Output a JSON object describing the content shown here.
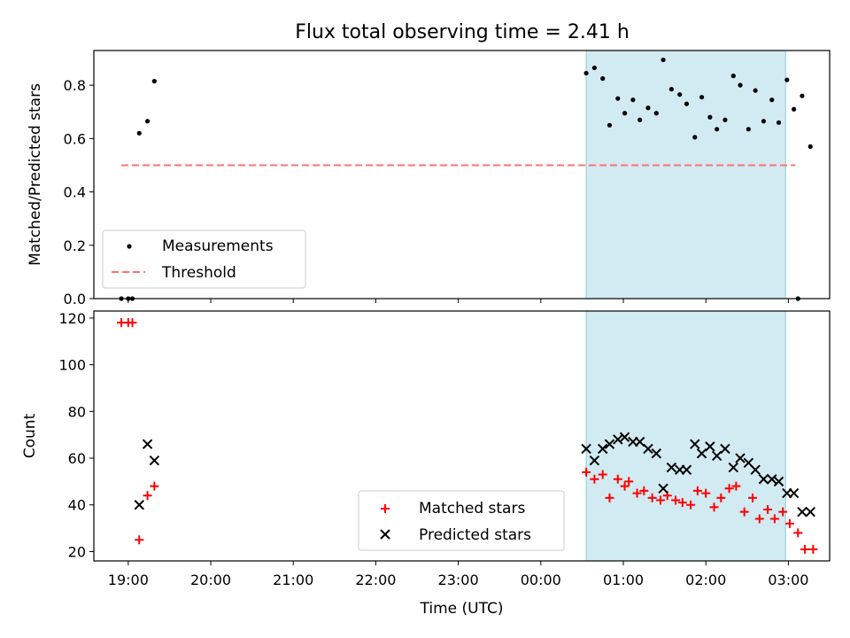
{
  "title": "Flux total observing time = 2.41 h",
  "colors": {
    "measurement": "#000000",
    "threshold": "#ff7070",
    "matched": "#ff0000",
    "predicted": "#000000",
    "span": "#add8e6"
  },
  "chart_data": [
    {
      "type": "scatter",
      "ylabel": "Matched/Predicted stars",
      "ylim": [
        0,
        0.93
      ],
      "yticks": [
        "0.0",
        "0.2",
        "0.4",
        "0.6",
        "0.8"
      ],
      "ytick_values": [
        0,
        0.2,
        0.4,
        0.6,
        0.8
      ],
      "xlim": [
        "18:35",
        "03:30"
      ],
      "observing_window": [
        "00:33",
        "02:58"
      ],
      "legend": {
        "placement": "lower-left",
        "entries": [
          "Measurements",
          "Threshold"
        ]
      },
      "threshold": {
        "name": "Threshold",
        "value": 0.5,
        "x": [
          "18:55",
          "03:05"
        ]
      },
      "series": [
        {
          "name": "Measurements",
          "points": [
            [
              "18:55",
              0.0
            ],
            [
              "19:00",
              0.0
            ],
            [
              "19:03",
              0.0
            ],
            [
              "19:08",
              0.62
            ],
            [
              "19:14",
              0.665
            ],
            [
              "19:19",
              0.815
            ],
            [
              "00:33",
              0.845
            ],
            [
              "00:39",
              0.865
            ],
            [
              "00:45",
              0.825
            ],
            [
              "00:50",
              0.65
            ],
            [
              "00:56",
              0.75
            ],
            [
              "01:01",
              0.695
            ],
            [
              "01:07",
              0.745
            ],
            [
              "01:12",
              0.67
            ],
            [
              "01:18",
              0.715
            ],
            [
              "01:24",
              0.695
            ],
            [
              "01:29",
              0.895
            ],
            [
              "01:35",
              0.785
            ],
            [
              "01:41",
              0.765
            ],
            [
              "01:46",
              0.73
            ],
            [
              "01:52",
              0.605
            ],
            [
              "01:57",
              0.755
            ],
            [
              "02:03",
              0.68
            ],
            [
              "02:08",
              0.635
            ],
            [
              "02:14",
              0.67
            ],
            [
              "02:20",
              0.835
            ],
            [
              "02:25",
              0.8
            ],
            [
              "02:31",
              0.635
            ],
            [
              "02:36",
              0.78
            ],
            [
              "02:42",
              0.665
            ],
            [
              "02:48",
              0.745
            ],
            [
              "02:53",
              0.66
            ],
            [
              "02:59",
              0.82
            ],
            [
              "03:04",
              0.71
            ],
            [
              "03:10",
              0.76
            ],
            [
              "03:16",
              0.57
            ],
            [
              "03:07",
              0.0
            ]
          ]
        }
      ]
    },
    {
      "type": "scatter",
      "xlabel": "Time (UTC)",
      "ylabel": "Count",
      "ylim": [
        16,
        123
      ],
      "yticks": [
        "20",
        "40",
        "60",
        "80",
        "100",
        "120"
      ],
      "ytick_values": [
        20,
        40,
        60,
        80,
        100,
        120
      ],
      "xlim": [
        "18:35",
        "03:30"
      ],
      "xticks": [
        "19:00",
        "20:00",
        "21:00",
        "22:00",
        "23:00",
        "00:00",
        "01:00",
        "02:00",
        "03:00"
      ],
      "observing_window": [
        "00:33",
        "02:58"
      ],
      "legend": {
        "placement": "bottom-center",
        "entries": [
          "Matched stars",
          "Predicted stars"
        ]
      },
      "series": [
        {
          "name": "Matched stars",
          "points": [
            [
              "18:55",
              118
            ],
            [
              "19:00",
              118
            ],
            [
              "19:03",
              118
            ],
            [
              "19:08",
              25
            ],
            [
              "19:14",
              44
            ],
            [
              "19:19",
              48
            ],
            [
              "00:33",
              54
            ],
            [
              "00:39",
              51
            ],
            [
              "00:45",
              53
            ],
            [
              "00:50",
              43
            ],
            [
              "00:56",
              51
            ],
            [
              "01:01",
              48
            ],
            [
              "01:04",
              50
            ],
            [
              "01:10",
              45
            ],
            [
              "01:15",
              46
            ],
            [
              "01:21",
              43
            ],
            [
              "01:27",
              42
            ],
            [
              "01:32",
              44
            ],
            [
              "01:38",
              42
            ],
            [
              "01:43",
              41
            ],
            [
              "01:49",
              40
            ],
            [
              "01:54",
              46
            ],
            [
              "02:00",
              45
            ],
            [
              "02:06",
              39
            ],
            [
              "02:11",
              43
            ],
            [
              "02:17",
              47
            ],
            [
              "02:22",
              48
            ],
            [
              "02:28",
              37
            ],
            [
              "02:34",
              43
            ],
            [
              "02:39",
              34
            ],
            [
              "02:45",
              38
            ],
            [
              "02:50",
              34
            ],
            [
              "02:56",
              37
            ],
            [
              "03:01",
              32
            ],
            [
              "03:07",
              28
            ],
            [
              "03:12",
              21
            ],
            [
              "03:18",
              21
            ]
          ]
        },
        {
          "name": "Predicted stars",
          "points": [
            [
              "19:08",
              40
            ],
            [
              "19:14",
              66
            ],
            [
              "19:19",
              59
            ],
            [
              "00:33",
              64
            ],
            [
              "00:39",
              59
            ],
            [
              "00:45",
              64
            ],
            [
              "00:50",
              66
            ],
            [
              "00:56",
              68
            ],
            [
              "01:01",
              69
            ],
            [
              "01:07",
              67
            ],
            [
              "01:12",
              67
            ],
            [
              "01:18",
              64
            ],
            [
              "01:24",
              62
            ],
            [
              "01:29",
              47
            ],
            [
              "01:35",
              56
            ],
            [
              "01:41",
              55
            ],
            [
              "01:46",
              55
            ],
            [
              "01:52",
              66
            ],
            [
              "01:57",
              62
            ],
            [
              "02:03",
              65
            ],
            [
              "02:08",
              61
            ],
            [
              "02:14",
              64
            ],
            [
              "02:20",
              56
            ],
            [
              "02:25",
              60
            ],
            [
              "02:31",
              58
            ],
            [
              "02:36",
              55
            ],
            [
              "02:42",
              51
            ],
            [
              "02:48",
              51
            ],
            [
              "02:53",
              50
            ],
            [
              "02:59",
              45
            ],
            [
              "03:04",
              45
            ],
            [
              "03:10",
              37
            ],
            [
              "03:16",
              37
            ]
          ]
        }
      ]
    }
  ]
}
